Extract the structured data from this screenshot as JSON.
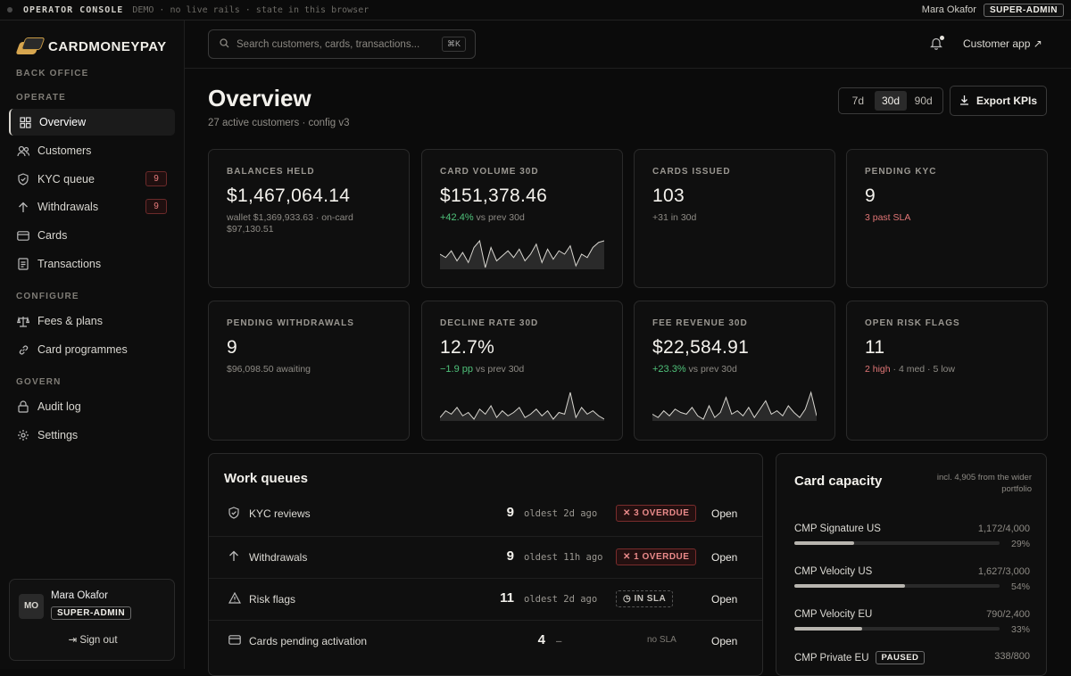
{
  "topbar": {
    "console_label": "OPERATOR CONSOLE",
    "demo_note": "DEMO · no live rails · state in this browser",
    "user_name": "Mara Okafor",
    "role": "SUPER-ADMIN"
  },
  "brand": {
    "name": "CARDMONEYPAY"
  },
  "sidebar": {
    "back_office": "BACK OFFICE",
    "operate_label": "OPERATE",
    "configure_label": "CONFIGURE",
    "govern_label": "GOVERN",
    "items": [
      {
        "label": "Overview",
        "icon": "grid-icon",
        "active": true
      },
      {
        "label": "Customers",
        "icon": "users-icon"
      },
      {
        "label": "KYC queue",
        "icon": "shield-icon",
        "count": "9"
      },
      {
        "label": "Withdrawals",
        "icon": "arrow-up-icon",
        "count": "9"
      },
      {
        "label": "Cards",
        "icon": "card-icon"
      },
      {
        "label": "Transactions",
        "icon": "document-icon"
      },
      {
        "label": "Fees & plans",
        "icon": "scale-icon"
      },
      {
        "label": "Card programmes",
        "icon": "link-icon"
      },
      {
        "label": "Audit log",
        "icon": "lock-icon"
      },
      {
        "label": "Settings",
        "icon": "gear-icon"
      }
    ],
    "user": {
      "initials": "MO",
      "name": "Mara Okafor",
      "role": "SUPER-ADMIN",
      "signout": "Sign out"
    }
  },
  "header": {
    "search_placeholder": "Search customers, cards, transactions...",
    "shortcut": "⌘K",
    "customer_app": "Customer app ↗"
  },
  "page": {
    "title": "Overview",
    "subtitle": "27 active customers · config v3",
    "ranges": [
      "7d",
      "30d",
      "90d"
    ],
    "selected_range": "30d",
    "export_label": "Export KPIs"
  },
  "kpis": [
    {
      "label": "BALANCES HELD",
      "value": "$1,467,064.14",
      "sub": "wallet $1,369,933.63 · on-card $97,130.51"
    },
    {
      "label": "CARD VOLUME 30D",
      "value": "$151,378.46",
      "delta": "+42.4%",
      "sub": "vs prev 30d"
    },
    {
      "label": "CARDS ISSUED",
      "value": "103",
      "sub": "+31 in 30d"
    },
    {
      "label": "PENDING KYC",
      "value": "9",
      "warn": "3 past SLA"
    },
    {
      "label": "PENDING WITHDRAWALS",
      "value": "9",
      "sub": "$96,098.50 awaiting"
    },
    {
      "label": "DECLINE RATE 30D",
      "value": "12.7%",
      "delta": "−1.9 pp",
      "sub": "vs prev 30d"
    },
    {
      "label": "FEE REVENUE 30D",
      "value": "$22,584.91",
      "delta": "+23.3%",
      "sub": "vs prev 30d"
    },
    {
      "label": "OPEN RISK FLAGS",
      "value": "11",
      "warn": "2 high",
      "sub": " · 4 med · 5 low"
    }
  ],
  "work_queues": {
    "title": "Work queues",
    "rows": [
      {
        "name": "KYC reviews",
        "icon": "shield-icon",
        "count": "9",
        "oldest": "oldest 2d ago",
        "status": "✕ 3 OVERDUE",
        "kind": "over",
        "action": "Open"
      },
      {
        "name": "Withdrawals",
        "icon": "arrow-up-icon",
        "count": "9",
        "oldest": "oldest 11h ago",
        "status": "✕ 1 OVERDUE",
        "kind": "over",
        "action": "Open"
      },
      {
        "name": "Risk flags",
        "icon": "warning-icon",
        "count": "11",
        "oldest": "oldest 2d ago",
        "status": "◷ IN SLA",
        "kind": "sla",
        "action": "Open"
      },
      {
        "name": "Cards pending activation",
        "icon": "card-icon",
        "count": "4",
        "oldest": "–",
        "status": "no SLA",
        "kind": "nosla",
        "action": "Open"
      }
    ]
  },
  "capacity": {
    "title": "Card capacity",
    "note": "incl. 4,905 from the wider portfolio",
    "items": [
      {
        "name": "CMP Signature US",
        "value": "1,172/4,000",
        "pct": "29%",
        "fraction": 0.29
      },
      {
        "name": "CMP Velocity US",
        "value": "1,627/3,000",
        "pct": "54%",
        "fraction": 0.54
      },
      {
        "name": "CMP Velocity EU",
        "value": "790/2,400",
        "pct": "33%",
        "fraction": 0.33
      },
      {
        "name": "CMP Private EU",
        "value": "338/800",
        "badge": "PAUSED",
        "pct": "",
        "fraction": 0.42
      }
    ]
  },
  "sparklines": {
    "card_volume": [
      22,
      20,
      24,
      18,
      23,
      17,
      26,
      30,
      14,
      26,
      18,
      21,
      24,
      20,
      25,
      18,
      22,
      28,
      17,
      25,
      19,
      24,
      22,
      27,
      15,
      22,
      20,
      26,
      29,
      30
    ],
    "decline_rate": [
      10,
      14,
      12,
      16,
      11,
      13,
      9,
      15,
      12,
      17,
      10,
      14,
      11,
      13,
      16,
      10,
      12,
      15,
      11,
      14,
      9,
      13,
      12,
      25,
      10,
      16,
      12,
      14,
      11,
      9
    ],
    "fee_revenue": [
      12,
      10,
      14,
      11,
      15,
      13,
      12,
      16,
      11,
      9,
      17,
      10,
      13,
      22,
      12,
      14,
      11,
      16,
      10,
      15,
      20,
      12,
      14,
      11,
      17,
      13,
      10,
      15,
      25,
      11
    ]
  }
}
